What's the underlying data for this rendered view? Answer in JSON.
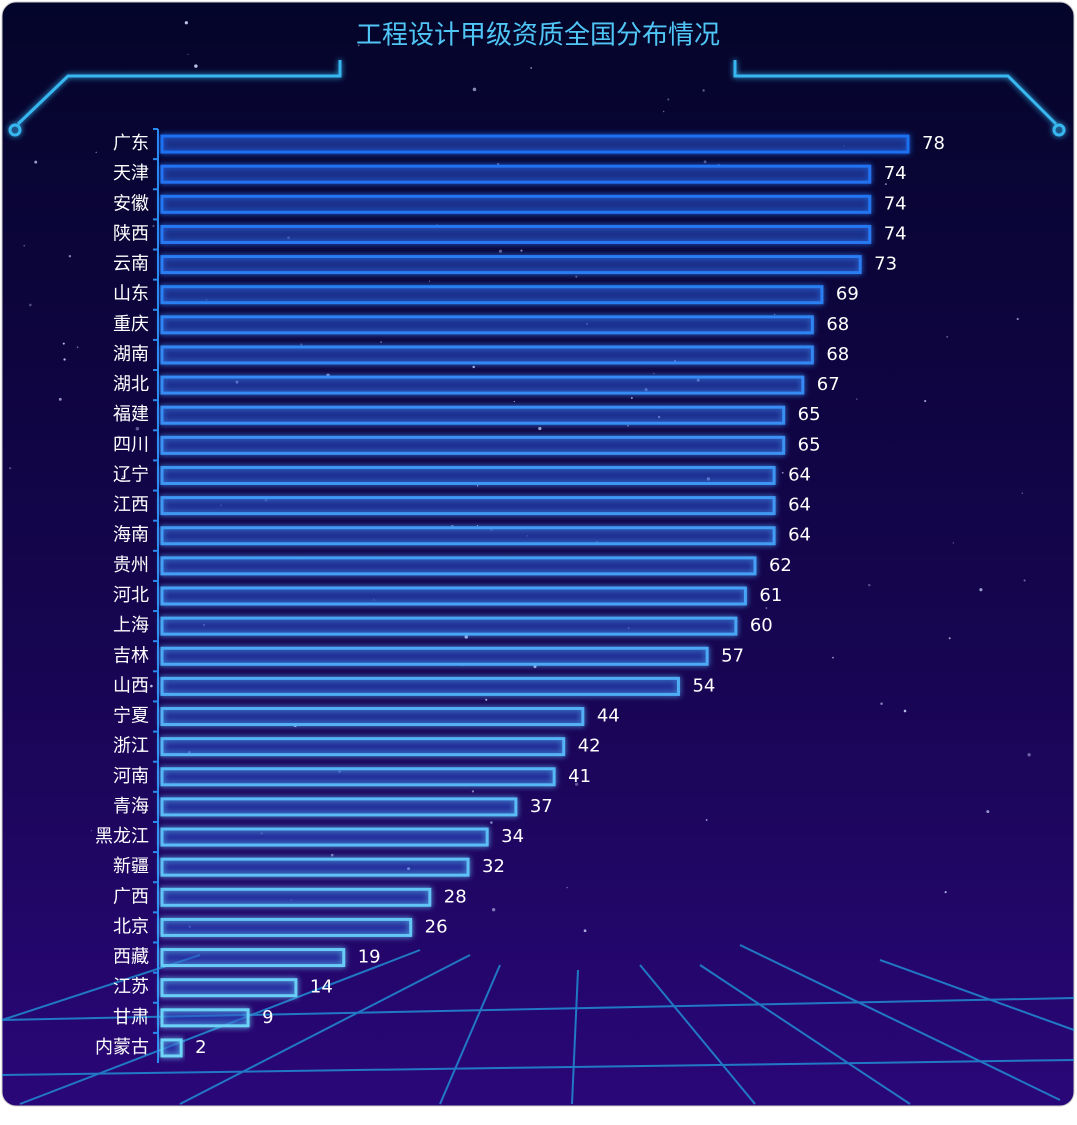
{
  "chart_data": {
    "type": "bar",
    "orientation": "horizontal",
    "title": "工程设计甲级资质全国分布情况",
    "categories": [
      "广东",
      "天津",
      "安徽",
      "陕西",
      "云南",
      "山东",
      "重庆",
      "湖南",
      "湖北",
      "福建",
      "四川",
      "辽宁",
      "江西",
      "海南",
      "贵州",
      "河北",
      "上海",
      "吉林",
      "山西",
      "宁夏",
      "浙江",
      "河南",
      "青海",
      "黑龙江",
      "新疆",
      "广西",
      "北京",
      "西藏",
      "江苏",
      "甘肃",
      "内蒙古"
    ],
    "values": [
      78,
      74,
      74,
      74,
      73,
      69,
      68,
      68,
      67,
      65,
      65,
      64,
      64,
      64,
      62,
      61,
      60,
      57,
      54,
      44,
      42,
      41,
      37,
      34,
      32,
      28,
      26,
      19,
      14,
      9,
      2
    ],
    "colors": [
      "#1f6ff2",
      "#6fd6f7"
    ],
    "xlim": [
      0,
      78
    ]
  }
}
